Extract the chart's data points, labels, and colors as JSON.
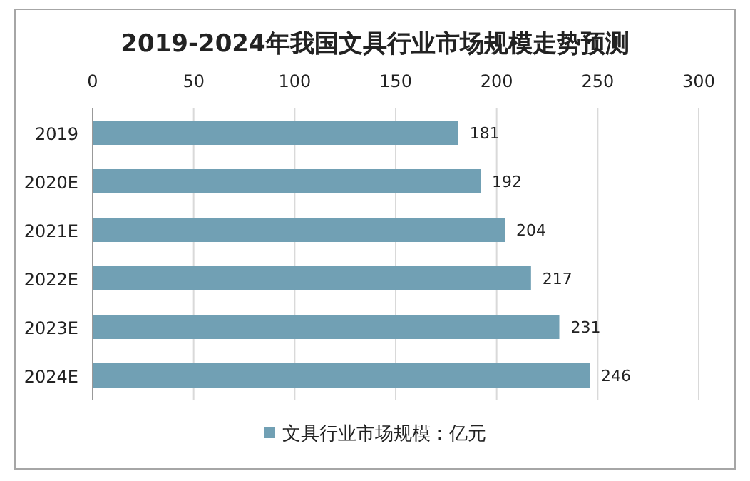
{
  "chart_data": {
    "type": "bar",
    "orientation": "horizontal",
    "title": "2019-2024年我国文具行业市场规模走势预测",
    "categories": [
      "2019",
      "2020E",
      "2021E",
      "2022E",
      "2023E",
      "2024E"
    ],
    "series": [
      {
        "name": "文具行业市场规模：亿元",
        "color": "#71a0b4",
        "values": [
          181,
          192,
          204,
          217,
          231,
          246
        ]
      }
    ],
    "xlim": [
      0,
      300
    ],
    "xticks": [
      0,
      50,
      100,
      150,
      200,
      250,
      300
    ],
    "grid": "x",
    "legend": "bottom",
    "data_labels": true
  }
}
